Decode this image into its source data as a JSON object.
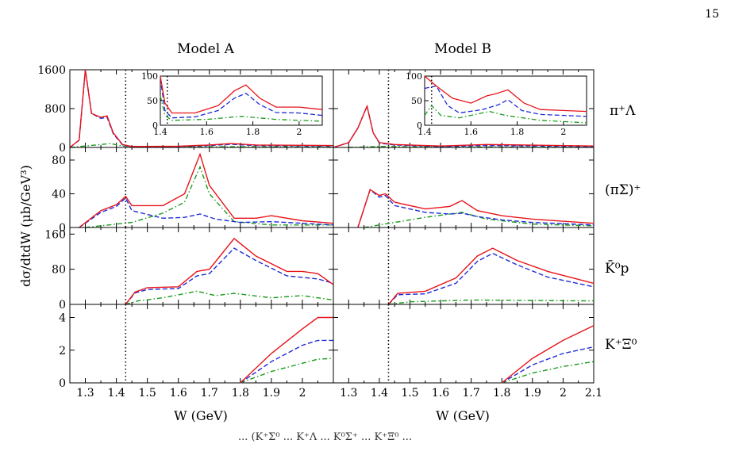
{
  "page_number": "15",
  "bottom_clipped_text": "... (K⁺Σ⁰ ... K⁺Λ ... K̄⁰Σ⁺ ... K⁺Ξ⁰ ...",
  "colors": {
    "full": "#e8141b",
    "dashed": "#1f2bd6",
    "dashdot": "#1a9a1a",
    "axis": "#000000"
  },
  "figure": {
    "col_titles": [
      "Model A",
      "Model B"
    ],
    "ylabel": "dσ/dtdW (μb/GeV³)",
    "xlabel": "W (GeV)",
    "threshold_marker_W": 1.43,
    "x_ticks": [
      "1.3",
      "1.4",
      "1.5",
      "1.6",
      "1.7",
      "1.8",
      "1.9",
      "2"
    ],
    "x_ticks_B": [
      "1.3",
      "1.4",
      "1.5",
      "1.6",
      "1.7",
      "1.8",
      "1.9",
      "2",
      "2.1"
    ],
    "row_labels": [
      "π⁺Λ",
      "(πΣ)⁺",
      "K̄⁰p",
      "K⁺Ξ⁰"
    ],
    "row_y_ticks": [
      [
        "0",
        "800",
        "1600"
      ],
      [
        "0",
        "40",
        "80"
      ],
      [
        "0",
        "80",
        "160"
      ],
      [
        "0",
        "2",
        "4"
      ]
    ],
    "inset": {
      "x_ticks": [
        "1.4",
        "1.6",
        "1.8",
        "2"
      ],
      "y_ticks": [
        "0",
        "50",
        "100"
      ]
    }
  },
  "chart_data": {
    "type": "line",
    "xlabel": "W (GeV)",
    "ylabel": "dσ/dtdW (μb/GeV³)",
    "xlim": [
      1.25,
      2.1
    ],
    "series_styles": [
      "solid",
      "dashed",
      "dashdot"
    ],
    "panels": [
      {
        "model": "Model A",
        "channel": "π⁺Λ",
        "ylim": [
          0,
          1600
        ],
        "full": [
          [
            1.25,
            0
          ],
          [
            1.28,
            150
          ],
          [
            1.3,
            1600
          ],
          [
            1.32,
            700
          ],
          [
            1.35,
            620
          ],
          [
            1.37,
            650
          ],
          [
            1.39,
            300
          ],
          [
            1.42,
            60
          ],
          [
            1.45,
            20
          ],
          [
            1.6,
            25
          ],
          [
            1.7,
            50
          ],
          [
            1.77,
            80
          ],
          [
            1.85,
            50
          ],
          [
            2.1,
            40
          ]
        ],
        "dashed": [
          [
            1.25,
            0
          ],
          [
            1.28,
            150
          ],
          [
            1.3,
            1600
          ],
          [
            1.32,
            700
          ],
          [
            1.35,
            600
          ],
          [
            1.37,
            620
          ],
          [
            1.39,
            280
          ],
          [
            1.42,
            50
          ],
          [
            1.45,
            15
          ],
          [
            1.6,
            20
          ],
          [
            1.7,
            40
          ],
          [
            1.77,
            65
          ],
          [
            1.85,
            40
          ],
          [
            2.1,
            30
          ]
        ],
        "dashdot": [
          [
            1.25,
            0
          ],
          [
            1.3,
            30
          ],
          [
            1.35,
            60
          ],
          [
            1.38,
            80
          ],
          [
            1.42,
            30
          ],
          [
            1.5,
            10
          ],
          [
            1.8,
            15
          ],
          [
            2.1,
            10
          ]
        ]
      },
      {
        "model": "Model A",
        "channel": "(πΣ)⁺",
        "ylim": [
          0,
          95
        ],
        "full": [
          [
            1.28,
            0
          ],
          [
            1.35,
            20
          ],
          [
            1.4,
            27
          ],
          [
            1.43,
            37
          ],
          [
            1.45,
            26
          ],
          [
            1.55,
            26
          ],
          [
            1.62,
            40
          ],
          [
            1.67,
            87
          ],
          [
            1.7,
            50
          ],
          [
            1.78,
            11
          ],
          [
            1.85,
            11
          ],
          [
            1.9,
            14
          ],
          [
            2,
            8
          ],
          [
            2.1,
            5
          ]
        ],
        "dashed": [
          [
            1.28,
            0
          ],
          [
            1.35,
            18
          ],
          [
            1.4,
            25
          ],
          [
            1.43,
            35
          ],
          [
            1.45,
            20
          ],
          [
            1.55,
            11
          ],
          [
            1.62,
            12
          ],
          [
            1.67,
            16
          ],
          [
            1.72,
            10
          ],
          [
            1.8,
            6
          ],
          [
            1.9,
            7
          ],
          [
            2.1,
            3
          ]
        ],
        "dashdot": [
          [
            1.3,
            0
          ],
          [
            1.4,
            4
          ],
          [
            1.45,
            6
          ],
          [
            1.55,
            17
          ],
          [
            1.62,
            30
          ],
          [
            1.67,
            72
          ],
          [
            1.7,
            40
          ],
          [
            1.78,
            7
          ],
          [
            1.9,
            3
          ],
          [
            2.1,
            3
          ]
        ]
      },
      {
        "model": "Model A",
        "channel": "K̄⁰p",
        "ylim": [
          0,
          175
        ],
        "full": [
          [
            1.43,
            0
          ],
          [
            1.46,
            28
          ],
          [
            1.5,
            38
          ],
          [
            1.6,
            40
          ],
          [
            1.66,
            75
          ],
          [
            1.7,
            80
          ],
          [
            1.78,
            150
          ],
          [
            1.85,
            110
          ],
          [
            1.95,
            75
          ],
          [
            2,
            75
          ],
          [
            2.05,
            70
          ],
          [
            2.1,
            45
          ]
        ],
        "dashed": [
          [
            1.43,
            0
          ],
          [
            1.46,
            26
          ],
          [
            1.5,
            34
          ],
          [
            1.6,
            36
          ],
          [
            1.66,
            65
          ],
          [
            1.7,
            70
          ],
          [
            1.78,
            128
          ],
          [
            1.85,
            100
          ],
          [
            1.95,
            65
          ],
          [
            2.05,
            58
          ],
          [
            2.1,
            48
          ]
        ],
        "dashdot": [
          [
            1.43,
            0
          ],
          [
            1.47,
            8
          ],
          [
            1.55,
            15
          ],
          [
            1.66,
            30
          ],
          [
            1.72,
            20
          ],
          [
            1.78,
            25
          ],
          [
            1.9,
            15
          ],
          [
            2,
            20
          ],
          [
            2.1,
            10
          ]
        ]
      },
      {
        "model": "Model A",
        "channel": "K⁺Ξ⁰",
        "ylim": [
          0,
          4.8
        ],
        "full": [
          [
            1.8,
            0
          ],
          [
            1.9,
            1.8
          ],
          [
            2,
            3.3
          ],
          [
            2.05,
            4.0
          ],
          [
            2.1,
            4.0
          ]
        ],
        "dashed": [
          [
            1.8,
            0
          ],
          [
            1.9,
            1.3
          ],
          [
            2,
            2.3
          ],
          [
            2.05,
            2.6
          ],
          [
            2.1,
            2.6
          ]
        ],
        "dashdot": [
          [
            1.8,
            0
          ],
          [
            1.9,
            0.7
          ],
          [
            2,
            1.2
          ],
          [
            2.05,
            1.45
          ],
          [
            2.1,
            1.5
          ]
        ]
      },
      {
        "model": "Model B",
        "channel": "π⁺Λ",
        "ylim": [
          0,
          1600
        ],
        "full": [
          [
            1.25,
            0
          ],
          [
            1.3,
            100
          ],
          [
            1.33,
            400
          ],
          [
            1.36,
            850
          ],
          [
            1.38,
            300
          ],
          [
            1.4,
            100
          ],
          [
            1.45,
            60
          ],
          [
            1.6,
            30
          ],
          [
            1.75,
            60
          ],
          [
            2.1,
            30
          ]
        ],
        "dashed": [
          [
            1.25,
            0
          ],
          [
            1.3,
            100
          ],
          [
            1.33,
            400
          ],
          [
            1.36,
            850
          ],
          [
            1.38,
            300
          ],
          [
            1.4,
            90
          ],
          [
            1.45,
            50
          ],
          [
            1.6,
            20
          ],
          [
            1.75,
            40
          ],
          [
            2.1,
            20
          ]
        ],
        "dashdot": [
          [
            1.3,
            0
          ],
          [
            1.4,
            20
          ],
          [
            1.6,
            10
          ],
          [
            2.1,
            5
          ]
        ]
      },
      {
        "model": "Model B",
        "channel": "(πΣ)⁺",
        "ylim": [
          0,
          95
        ],
        "full": [
          [
            1.33,
            0
          ],
          [
            1.37,
            45
          ],
          [
            1.4,
            38
          ],
          [
            1.42,
            40
          ],
          [
            1.45,
            30
          ],
          [
            1.55,
            22
          ],
          [
            1.63,
            25
          ],
          [
            1.67,
            32
          ],
          [
            1.72,
            20
          ],
          [
            1.8,
            14
          ],
          [
            1.9,
            10
          ],
          [
            2.1,
            5
          ]
        ],
        "dashed": [
          [
            1.33,
            0
          ],
          [
            1.37,
            45
          ],
          [
            1.4,
            36
          ],
          [
            1.42,
            38
          ],
          [
            1.45,
            26
          ],
          [
            1.55,
            18
          ],
          [
            1.63,
            16
          ],
          [
            1.67,
            17
          ],
          [
            1.72,
            13
          ],
          [
            1.8,
            9
          ],
          [
            1.9,
            6
          ],
          [
            2.1,
            3
          ]
        ],
        "dashdot": [
          [
            1.35,
            0
          ],
          [
            1.45,
            6
          ],
          [
            1.55,
            12
          ],
          [
            1.67,
            18
          ],
          [
            1.75,
            10
          ],
          [
            1.9,
            4
          ],
          [
            2.1,
            2
          ]
        ]
      },
      {
        "model": "Model B",
        "channel": "K̄⁰p",
        "ylim": [
          0,
          175
        ],
        "full": [
          [
            1.43,
            0
          ],
          [
            1.46,
            25
          ],
          [
            1.55,
            30
          ],
          [
            1.65,
            60
          ],
          [
            1.72,
            110
          ],
          [
            1.77,
            128
          ],
          [
            1.85,
            100
          ],
          [
            1.95,
            75
          ],
          [
            2.1,
            48
          ]
        ],
        "dashed": [
          [
            1.43,
            0
          ],
          [
            1.46,
            22
          ],
          [
            1.55,
            24
          ],
          [
            1.65,
            48
          ],
          [
            1.72,
            98
          ],
          [
            1.77,
            116
          ],
          [
            1.85,
            90
          ],
          [
            1.95,
            62
          ],
          [
            2.1,
            40
          ]
        ],
        "dashdot": [
          [
            1.43,
            0
          ],
          [
            1.5,
            6
          ],
          [
            1.7,
            10
          ],
          [
            2.1,
            8
          ]
        ]
      },
      {
        "model": "Model B",
        "channel": "K⁺Ξ⁰",
        "ylim": [
          0,
          4.8
        ],
        "full": [
          [
            1.8,
            0
          ],
          [
            1.9,
            1.5
          ],
          [
            2,
            2.6
          ],
          [
            2.1,
            3.5
          ]
        ],
        "dashed": [
          [
            1.8,
            0
          ],
          [
            1.9,
            1.1
          ],
          [
            2,
            1.8
          ],
          [
            2.1,
            2.2
          ]
        ],
        "dashdot": [
          [
            1.8,
            0
          ],
          [
            1.9,
            0.6
          ],
          [
            2,
            1.0
          ],
          [
            2.1,
            1.3
          ]
        ]
      }
    ],
    "insets": [
      {
        "model": "Model A",
        "xlim": [
          1.4,
          2.1
        ],
        "ylim": [
          0,
          100
        ],
        "full": [
          [
            1.4,
            100
          ],
          [
            1.42,
            45
          ],
          [
            1.45,
            25
          ],
          [
            1.55,
            25
          ],
          [
            1.65,
            40
          ],
          [
            1.72,
            70
          ],
          [
            1.77,
            82
          ],
          [
            1.83,
            55
          ],
          [
            1.9,
            37
          ],
          [
            2,
            37
          ],
          [
            2.1,
            32
          ]
        ],
        "dashed": [
          [
            1.4,
            95
          ],
          [
            1.42,
            30
          ],
          [
            1.45,
            15
          ],
          [
            1.55,
            17
          ],
          [
            1.65,
            30
          ],
          [
            1.72,
            55
          ],
          [
            1.77,
            65
          ],
          [
            1.83,
            42
          ],
          [
            1.9,
            26
          ],
          [
            2,
            25
          ],
          [
            2.1,
            20
          ]
        ],
        "dashdot": [
          [
            1.4,
            60
          ],
          [
            1.42,
            20
          ],
          [
            1.45,
            10
          ],
          [
            1.6,
            12
          ],
          [
            1.75,
            18
          ],
          [
            1.9,
            12
          ],
          [
            2.1,
            8
          ]
        ]
      },
      {
        "model": "Model B",
        "xlim": [
          1.4,
          2.1
        ],
        "ylim": [
          0,
          100
        ],
        "full": [
          [
            1.4,
            100
          ],
          [
            1.45,
            80
          ],
          [
            1.52,
            55
          ],
          [
            1.6,
            45
          ],
          [
            1.67,
            60
          ],
          [
            1.7,
            63
          ],
          [
            1.76,
            72
          ],
          [
            1.83,
            45
          ],
          [
            1.9,
            32
          ],
          [
            2,
            30
          ],
          [
            2.1,
            28
          ]
        ],
        "dashed": [
          [
            1.4,
            75
          ],
          [
            1.45,
            80
          ],
          [
            1.5,
            40
          ],
          [
            1.55,
            25
          ],
          [
            1.65,
            32
          ],
          [
            1.72,
            42
          ],
          [
            1.76,
            52
          ],
          [
            1.82,
            30
          ],
          [
            1.9,
            22
          ],
          [
            2.1,
            18
          ]
        ],
        "dashdot": [
          [
            1.4,
            20
          ],
          [
            1.43,
            40
          ],
          [
            1.47,
            20
          ],
          [
            1.55,
            15
          ],
          [
            1.68,
            28
          ],
          [
            1.75,
            20
          ],
          [
            1.9,
            10
          ],
          [
            2.1,
            5
          ]
        ]
      }
    ]
  }
}
